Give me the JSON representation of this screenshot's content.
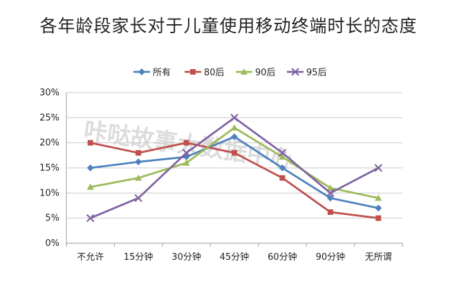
{
  "chart_data": {
    "type": "line",
    "title": "各年龄段家长对于儿童使用移动终端时长的态度",
    "xlabel": "",
    "ylabel": "",
    "categories": [
      "不允许",
      "15分钟",
      "30分钟",
      "45分钟",
      "60分钟",
      "90分钟",
      "无所谓"
    ],
    "yticks": [
      "0%",
      "5%",
      "10%",
      "15%",
      "20%",
      "25%",
      "30%"
    ],
    "ylim": [
      0,
      30
    ],
    "grid": true,
    "legend": "top",
    "watermark": "咔哒故事大数据中心",
    "series": [
      {
        "name": "所有",
        "color": "#4F81BD",
        "marker": "diamond",
        "values": [
          15,
          16.2,
          17.2,
          21.2,
          15,
          9,
          7
        ]
      },
      {
        "name": "80后",
        "color": "#C0504D",
        "marker": "square",
        "values": [
          20,
          18,
          20,
          18,
          13,
          6.2,
          5
        ]
      },
      {
        "name": "90后",
        "color": "#9BBB59",
        "marker": "triangle",
        "values": [
          11.2,
          13,
          16,
          23,
          17.2,
          11,
          9
        ]
      },
      {
        "name": "95后",
        "color": "#8064A2",
        "marker": "x",
        "values": [
          5,
          9,
          18,
          25,
          18,
          10,
          15
        ]
      }
    ]
  }
}
